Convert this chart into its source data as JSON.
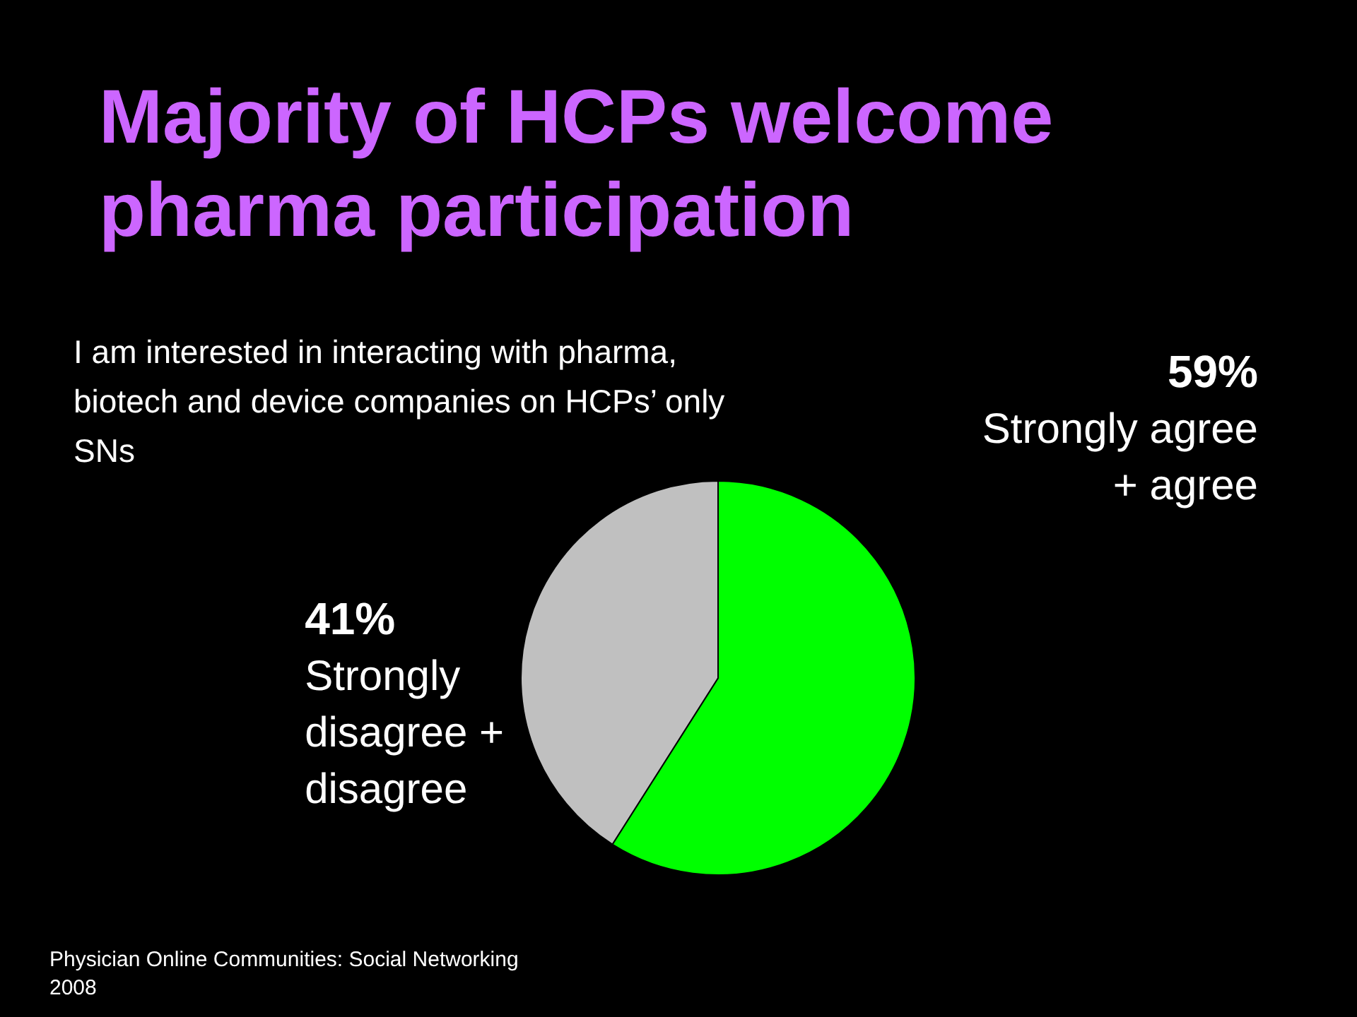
{
  "chart_data": {
    "type": "pie",
    "title": "Majority of HCPs welcome pharma participation",
    "subtitle": "I am interested in interacting with pharma, biotech and device companies on HCPs’ only SNs",
    "categories": [
      "Strongly agree + agree",
      "Strongly disagree + disagree"
    ],
    "values": [
      59,
      41
    ],
    "colors": [
      "#00ff00",
      "#c0c0c0"
    ],
    "value_labels": [
      "59%",
      "41%"
    ],
    "legend": false,
    "annotations": [
      "Physician Online Communities: Social Networking",
      "2008"
    ]
  }
}
